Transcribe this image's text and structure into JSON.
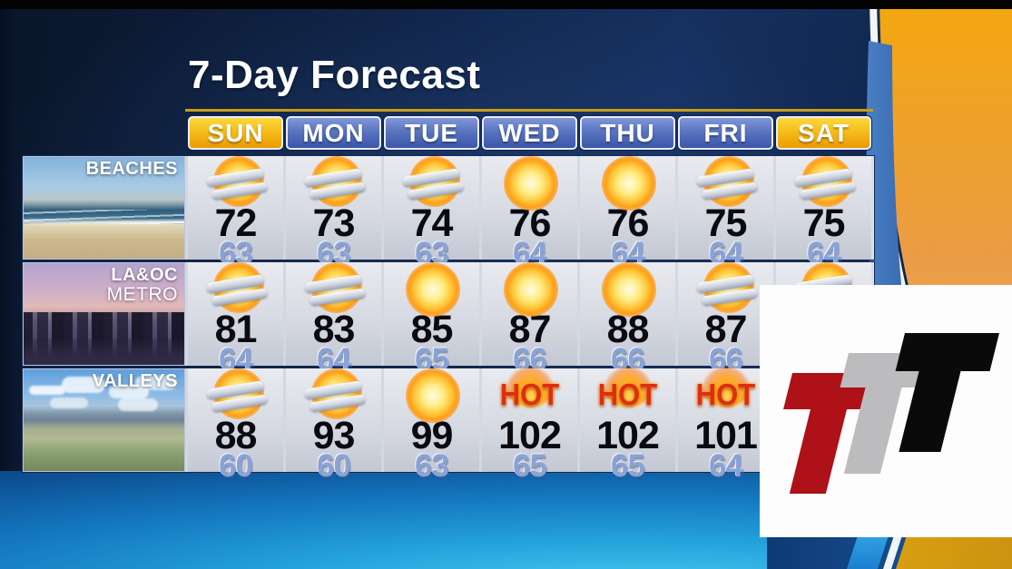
{
  "title": "7-Day Forecast",
  "station_logo": {
    "letters": "TTT",
    "colors": [
      "#ae1117",
      "#bcbcbe",
      "#0a0a0a"
    ]
  },
  "icons": {
    "hot_label": "HOT"
  },
  "colors": {
    "weekend_header": "#f5bd1a",
    "weekday_header": "#4a66b5",
    "high_temp": "#0a0a10",
    "low_temp": "#8aa3d6",
    "hot_text": "#dd2f10",
    "background_navy": "#0f2347",
    "swoosh_orange": "#f2a511",
    "bottom_blue": "#21a0dc"
  },
  "chart_data": {
    "type": "table",
    "title": "7-Day Forecast",
    "columns": [
      {
        "label": "SUN",
        "weekend": true
      },
      {
        "label": "MON",
        "weekend": false
      },
      {
        "label": "TUE",
        "weekend": false
      },
      {
        "label": "WED",
        "weekend": false
      },
      {
        "label": "THU",
        "weekend": false
      },
      {
        "label": "FRI",
        "weekend": false
      },
      {
        "label": "SAT",
        "weekend": true
      }
    ],
    "rows": [
      {
        "id": "beaches",
        "label_lines": [
          "BEACHES"
        ],
        "cells": [
          {
            "icon": "partly-cloudy",
            "high": "72",
            "low": "63"
          },
          {
            "icon": "partly-cloudy",
            "high": "73",
            "low": "63"
          },
          {
            "icon": "partly-cloudy",
            "high": "74",
            "low": "63"
          },
          {
            "icon": "sunny",
            "high": "76",
            "low": "64"
          },
          {
            "icon": "sunny",
            "high": "76",
            "low": "64"
          },
          {
            "icon": "partly-cloudy",
            "high": "75",
            "low": "64"
          },
          {
            "icon": "partly-cloudy",
            "high": "75",
            "low": "64"
          }
        ]
      },
      {
        "id": "metro",
        "label_lines": [
          "LA&OC",
          "METRO"
        ],
        "cells": [
          {
            "icon": "partly-cloudy",
            "high": "81",
            "low": "64"
          },
          {
            "icon": "partly-cloudy",
            "high": "83",
            "low": "64"
          },
          {
            "icon": "sunny",
            "high": "85",
            "low": "65"
          },
          {
            "icon": "sunny",
            "high": "87",
            "low": "66"
          },
          {
            "icon": "sunny",
            "high": "88",
            "low": "66"
          },
          {
            "icon": "partly-cloudy",
            "high": "87",
            "low": "66"
          },
          {
            "icon": "partly-cloudy",
            "high": null,
            "low": null
          }
        ]
      },
      {
        "id": "valleys",
        "label_lines": [
          "VALLEYS"
        ],
        "cells": [
          {
            "icon": "partly-cloudy",
            "high": "88",
            "low": "60"
          },
          {
            "icon": "partly-cloudy",
            "high": "93",
            "low": "60"
          },
          {
            "icon": "sunny",
            "high": "99",
            "low": "63"
          },
          {
            "icon": "hot",
            "high": "102",
            "low": "65"
          },
          {
            "icon": "hot",
            "high": "102",
            "low": "65"
          },
          {
            "icon": "hot",
            "high": "101",
            "low": "64"
          },
          {
            "icon": null,
            "high": null,
            "low": null
          }
        ]
      }
    ],
    "occlusion_note": "Saturday values for LA&OC Metro and Valleys rows are hidden behind the station logo overlay"
  }
}
